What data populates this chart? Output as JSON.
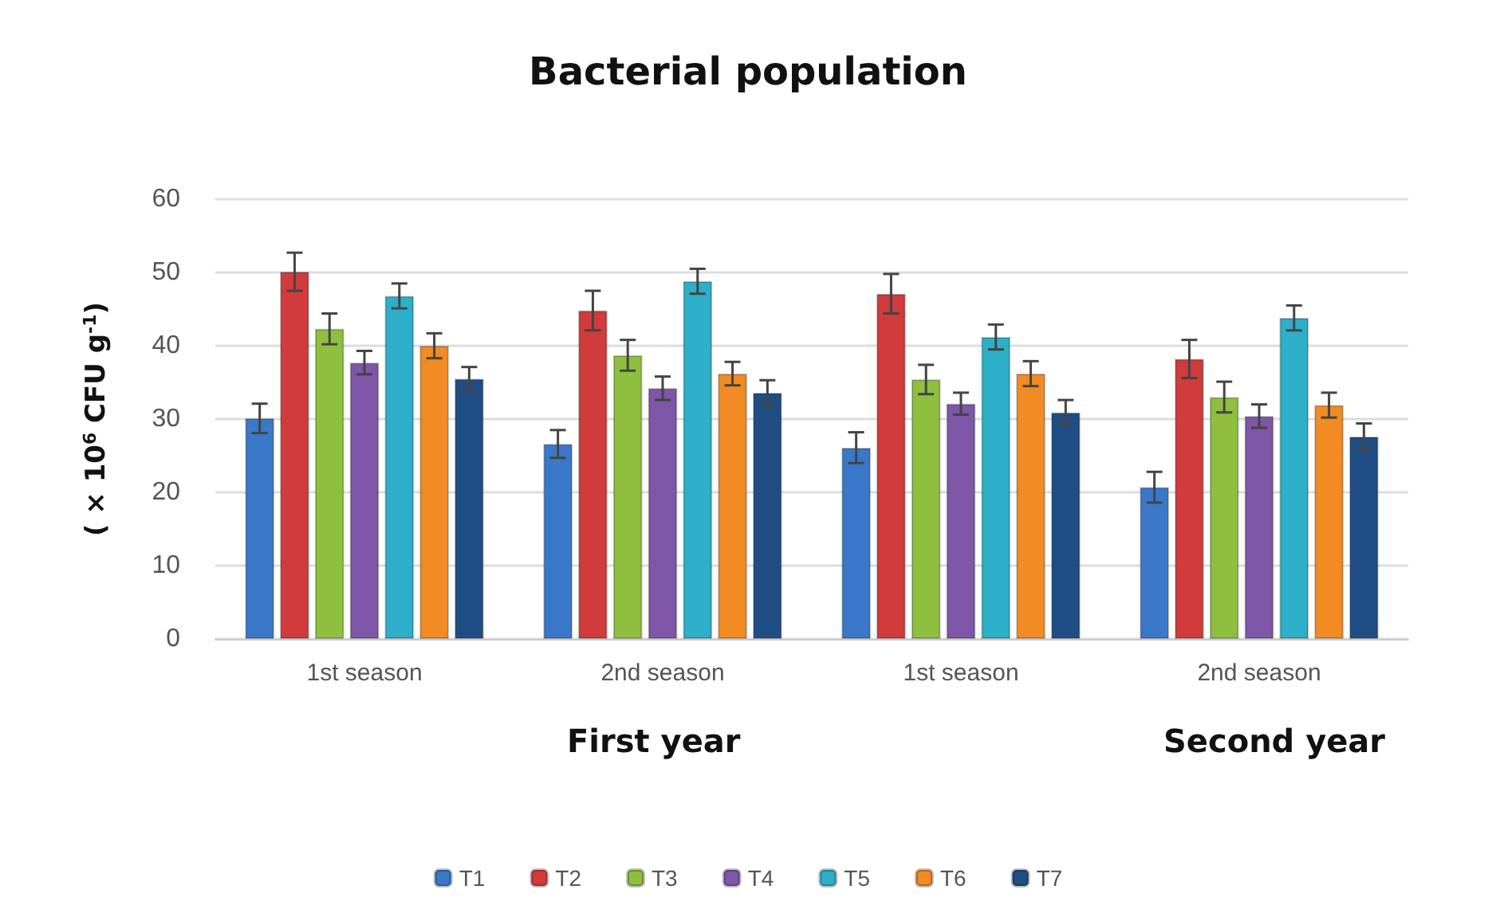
{
  "chart_data": {
    "type": "bar",
    "title": "Bacterial population",
    "ylabel": "( × 10$^{6}$ CFU g$^{-1}$)",
    "categories": [
      "1st season",
      "2nd season",
      "1st season",
      "2nd season"
    ],
    "annotations": [
      "First year",
      "Second year"
    ],
    "ylim": [
      0,
      60
    ],
    "yticks": [
      0,
      10,
      20,
      30,
      40,
      50,
      60
    ],
    "grid": "y",
    "legend": "bottom",
    "series": [
      {
        "name": "T1",
        "color": "#3a78c9",
        "values": [
          30.1,
          26.6,
          26.1,
          20.7
        ],
        "errors": [
          2,
          1.9,
          2.1,
          2.1
        ]
      },
      {
        "name": "T2",
        "color": "#d13b3b",
        "values": [
          50.1,
          44.8,
          47.1,
          38.2
        ],
        "errors": [
          2.6,
          2.7,
          2.7,
          2.6
        ]
      },
      {
        "name": "T3",
        "color": "#8fbf3f",
        "values": [
          42.3,
          38.7,
          35.4,
          33
        ],
        "errors": [
          2.1,
          2.1,
          2,
          2.1
        ]
      },
      {
        "name": "T4",
        "color": "#7e57a8",
        "values": [
          37.7,
          34.2,
          32.1,
          30.4
        ],
        "errors": [
          1.6,
          1.6,
          1.5,
          1.6
        ]
      },
      {
        "name": "T5",
        "color": "#2eafc9",
        "values": [
          46.8,
          48.8,
          41.2,
          43.8
        ],
        "errors": [
          1.7,
          1.7,
          1.7,
          1.7
        ]
      },
      {
        "name": "T6",
        "color": "#f28b24",
        "values": [
          40,
          36.2,
          36.2,
          31.9
        ],
        "errors": [
          1.7,
          1.6,
          1.7,
          1.7
        ]
      },
      {
        "name": "T7",
        "color": "#1f4e85",
        "values": [
          35.5,
          33.6,
          30.9,
          27.6
        ],
        "errors": [
          1.6,
          1.7,
          1.7,
          1.8
        ]
      }
    ]
  }
}
